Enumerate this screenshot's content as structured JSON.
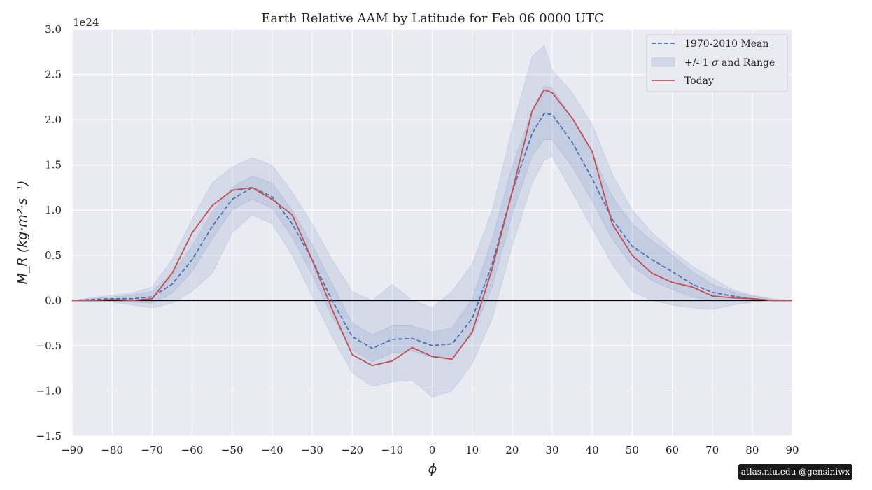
{
  "chart_data": {
    "type": "line",
    "title": "Earth Relative AAM by Latitude for Feb 06 0000 UTC",
    "xlabel": "ϕ",
    "ylabel": "M_R (kg·m²·s⁻¹)",
    "offset_label": "1e24",
    "xlim": [
      -90,
      90
    ],
    "ylim": [
      -1.5,
      3.0
    ],
    "grid": true,
    "legend_position": "upper right",
    "x_ticks": [
      -90,
      -80,
      -70,
      -60,
      -50,
      -40,
      -30,
      -20,
      -10,
      0,
      10,
      20,
      30,
      40,
      50,
      60,
      70,
      80,
      90
    ],
    "y_ticks": [
      -1.5,
      -1.0,
      -0.5,
      0.0,
      0.5,
      1.0,
      1.5,
      2.0,
      2.5,
      3.0
    ],
    "x": [
      -90,
      -85,
      -80,
      -75,
      -70,
      -65,
      -60,
      -55,
      -50,
      -45,
      -40,
      -35,
      -30,
      -25,
      -20,
      -15,
      -10,
      -5,
      0,
      5,
      10,
      15,
      20,
      25,
      28,
      30,
      35,
      40,
      45,
      50,
      55,
      60,
      65,
      70,
      75,
      80,
      85,
      90
    ],
    "series": [
      {
        "name": "1970-2010 Mean",
        "style": "dashed",
        "color": "#4c72b0",
        "values": [
          0,
          0.01,
          0.02,
          0.02,
          0.04,
          0.18,
          0.45,
          0.82,
          1.12,
          1.25,
          1.15,
          0.85,
          0.45,
          0.0,
          -0.4,
          -0.53,
          -0.43,
          -0.42,
          -0.5,
          -0.48,
          -0.2,
          0.4,
          1.2,
          1.85,
          2.07,
          2.06,
          1.75,
          1.35,
          0.9,
          0.6,
          0.45,
          0.32,
          0.18,
          0.09,
          0.05,
          0.02,
          0.0,
          0
        ]
      },
      {
        "name": "Today",
        "style": "solid",
        "color": "#c44e52",
        "values": [
          0,
          0,
          0.01,
          0.0,
          0.02,
          0.3,
          0.75,
          1.05,
          1.22,
          1.25,
          1.12,
          0.95,
          0.45,
          -0.1,
          -0.6,
          -0.72,
          -0.67,
          -0.52,
          -0.62,
          -0.65,
          -0.35,
          0.35,
          1.2,
          2.1,
          2.33,
          2.3,
          2.02,
          1.65,
          0.85,
          0.5,
          0.3,
          0.2,
          0.15,
          0.05,
          0.03,
          0.02,
          0.0,
          0
        ]
      }
    ],
    "bands": [
      {
        "name": "+/- 1 σ and Range",
        "color": "#4c72b0",
        "sigma_lower": [
          0,
          0.0,
          0.0,
          -0.02,
          -0.03,
          0.08,
          0.32,
          0.68,
          1.0,
          1.12,
          1.02,
          0.7,
          0.28,
          -0.18,
          -0.55,
          -0.68,
          -0.58,
          -0.56,
          -0.63,
          -0.62,
          -0.38,
          0.15,
          0.95,
          1.6,
          1.78,
          1.78,
          1.48,
          1.1,
          0.68,
          0.38,
          0.22,
          0.12,
          0.04,
          0.0,
          0.0,
          0.0,
          0.0,
          0
        ],
        "sigma_upper": [
          0,
          0.02,
          0.04,
          0.06,
          0.1,
          0.3,
          0.6,
          0.98,
          1.25,
          1.38,
          1.3,
          1.0,
          0.62,
          0.18,
          -0.25,
          -0.38,
          -0.28,
          -0.28,
          -0.35,
          -0.3,
          0.02,
          0.68,
          1.48,
          2.1,
          2.37,
          2.35,
          2.02,
          1.62,
          1.15,
          0.85,
          0.66,
          0.5,
          0.32,
          0.18,
          0.1,
          0.05,
          0.01,
          0
        ],
        "range_lower": [
          0,
          -0.01,
          -0.02,
          -0.05,
          -0.08,
          -0.03,
          0.1,
          0.3,
          0.75,
          0.95,
          0.85,
          0.5,
          0.05,
          -0.4,
          -0.8,
          -0.95,
          -0.9,
          -0.88,
          -1.07,
          -1.0,
          -0.7,
          -0.2,
          0.6,
          1.3,
          1.55,
          1.6,
          1.2,
          0.8,
          0.4,
          0.1,
          0.0,
          -0.05,
          -0.08,
          -0.1,
          -0.05,
          -0.02,
          0.0,
          0
        ],
        "range_upper": [
          0,
          0.03,
          0.06,
          0.08,
          0.15,
          0.45,
          0.9,
          1.3,
          1.48,
          1.58,
          1.5,
          1.2,
          0.85,
          0.45,
          0.1,
          0.0,
          0.18,
          0.0,
          -0.08,
          0.1,
          0.4,
          1.0,
          1.9,
          2.7,
          2.82,
          2.55,
          2.3,
          1.95,
          1.4,
          1.0,
          0.75,
          0.55,
          0.38,
          0.25,
          0.12,
          0.06,
          0.02,
          0
        ]
      }
    ],
    "zero_line": true
  },
  "legend": {
    "mean_label": "1970-2010 Mean",
    "band_label_prefix": "+/- 1 ",
    "band_label_sigma": "σ",
    "band_label_suffix": " and Range",
    "today_label": "Today"
  },
  "credit": "atlas.niu.edu  @gensiniwx"
}
